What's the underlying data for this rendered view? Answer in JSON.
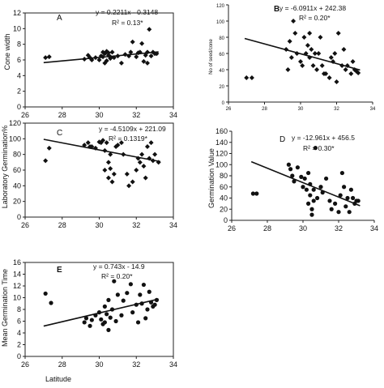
{
  "figure": {
    "x_label_bottom": "Latitude"
  },
  "chart_data": [
    {
      "id": "A",
      "type": "scatter",
      "letter": "A",
      "ylabel": "Cone width",
      "xlabel": "",
      "equation": "y = 0.2211x - 0.3148",
      "r2": "R² = 0.13*",
      "marker": "diamond",
      "xlim": [
        26,
        34
      ],
      "ylim": [
        0,
        12
      ],
      "x_ticks": [
        26,
        28,
        30,
        32,
        34
      ],
      "y_ticks": [
        0,
        2,
        4,
        6,
        8,
        10,
        12
      ],
      "trend": {
        "slope": 0.2211,
        "intercept": -0.3148
      },
      "x": [
        27.1,
        27.3,
        29.2,
        29.4,
        29.5,
        29.6,
        29.8,
        30.0,
        30.1,
        30.2,
        30.2,
        30.3,
        30.3,
        30.4,
        30.4,
        30.5,
        30.5,
        30.6,
        30.6,
        30.7,
        30.8,
        31.0,
        31.2,
        31.4,
        31.6,
        31.7,
        31.8,
        32.0,
        32.1,
        32.2,
        32.3,
        32.4,
        32.5,
        32.6,
        32.6,
        32.7,
        32.8,
        32.9,
        33.0,
        33.1
      ],
      "y": [
        6.3,
        6.4,
        6.1,
        6.6,
        6.3,
        6.0,
        6.3,
        6.0,
        6.5,
        7.0,
        6.4,
        6.8,
        5.6,
        7.1,
        5.9,
        6.6,
        6.9,
        6.4,
        6.2,
        7.0,
        6.3,
        6.5,
        5.6,
        6.7,
        6.5,
        7.0,
        8.3,
        6.4,
        6.9,
        7.0,
        8.1,
        5.8,
        6.6,
        7.0,
        5.6,
        9.9,
        6.5,
        7.0,
        6.8,
        6.8
      ]
    },
    {
      "id": "B",
      "type": "scatter",
      "letter": "B",
      "ylabel": "No of seed/cone",
      "xlabel": "",
      "equation": "y = -6.0911x + 242.38",
      "r2": "R² = 0.20*",
      "marker": "diamond",
      "xlim": [
        26,
        34
      ],
      "ylim": [
        0,
        120
      ],
      "x_ticks": [
        26,
        28,
        30,
        32,
        34
      ],
      "y_ticks": [
        0,
        20,
        40,
        60,
        80,
        100,
        120
      ],
      "trend": {
        "slope": -6.0911,
        "intercept": 242.38
      },
      "x": [
        27.0,
        27.3,
        29.2,
        29.3,
        29.4,
        29.5,
        29.6,
        29.7,
        29.8,
        30.0,
        30.1,
        30.2,
        30.3,
        30.4,
        30.5,
        30.5,
        30.6,
        30.7,
        30.8,
        30.9,
        31.0,
        31.1,
        31.2,
        31.3,
        31.4,
        31.6,
        31.7,
        31.8,
        31.9,
        32.0,
        32.1,
        32.3,
        32.4,
        32.5,
        32.6,
        32.8,
        32.9,
        33.0,
        33.1,
        33.2
      ],
      "y": [
        30,
        30,
        65,
        40,
        75,
        55,
        100,
        85,
        60,
        50,
        45,
        80,
        60,
        70,
        85,
        55,
        65,
        45,
        60,
        40,
        60,
        80,
        45,
        35,
        35,
        30,
        55,
        50,
        60,
        25,
        85,
        45,
        65,
        40,
        45,
        35,
        50,
        40,
        38,
        36
      ]
    },
    {
      "id": "C",
      "type": "scatter",
      "letter": "C",
      "ylabel": "Laboratory Germination%",
      "xlabel": "",
      "equation": "y = -4.5109x + 221.09",
      "r2": "R² = 0.1319*",
      "marker": "diamond",
      "xlim": [
        26,
        34
      ],
      "ylim": [
        0,
        120
      ],
      "x_ticks": [
        26,
        28,
        30,
        32,
        34
      ],
      "y_ticks": [
        0,
        20,
        40,
        60,
        80,
        100,
        120
      ],
      "trend": {
        "slope": -4.5109,
        "intercept": 221.09
      },
      "x": [
        27.1,
        27.3,
        29.2,
        29.4,
        29.5,
        29.6,
        29.8,
        30.0,
        30.1,
        30.2,
        30.3,
        30.3,
        30.4,
        30.5,
        30.5,
        30.6,
        30.6,
        30.7,
        30.8,
        30.9,
        31.0,
        31.2,
        31.3,
        31.5,
        31.6,
        31.8,
        32.0,
        32.1,
        32.2,
        32.3,
        32.4,
        32.5,
        32.6,
        32.7,
        32.8,
        32.9,
        33.0,
        33.2
      ],
      "y": [
        72,
        88,
        92,
        95,
        90,
        90,
        88,
        96,
        95,
        98,
        85,
        60,
        95,
        50,
        70,
        62,
        80,
        45,
        55,
        90,
        92,
        95,
        80,
        55,
        40,
        45,
        60,
        75,
        70,
        80,
        65,
        50,
        90,
        75,
        95,
        72,
        80,
        70
      ]
    },
    {
      "id": "D",
      "type": "scatter",
      "letter": "D",
      "ylabel": "Germination Value",
      "xlabel": "",
      "equation": "y = -12.961x + 456.5",
      "r2": "R² = 0.30*",
      "marker": "circle",
      "xlim": [
        26,
        34
      ],
      "ylim": [
        0,
        160
      ],
      "x_ticks": [
        26,
        28,
        30,
        32,
        34
      ],
      "y_ticks": [
        0,
        20,
        40,
        60,
        80,
        100,
        120,
        140,
        160
      ],
      "trend": {
        "slope": -12.961,
        "intercept": 456.5
      },
      "x": [
        27.2,
        27.4,
        29.2,
        29.3,
        29.4,
        29.5,
        29.7,
        29.9,
        30.0,
        30.1,
        30.2,
        30.3,
        30.3,
        30.4,
        30.4,
        30.5,
        30.5,
        30.6,
        30.6,
        30.7,
        30.8,
        31.0,
        31.1,
        31.3,
        31.5,
        31.6,
        31.8,
        32.0,
        32.1,
        32.2,
        32.3,
        32.4,
        32.5,
        32.6,
        32.7,
        32.8,
        32.9,
        33.0,
        33.1
      ],
      "y": [
        48,
        48,
        100,
        92,
        80,
        70,
        95,
        78,
        60,
        75,
        55,
        30,
        85,
        65,
        45,
        20,
        10,
        55,
        35,
        130,
        40,
        60,
        50,
        75,
        35,
        20,
        30,
        15,
        45,
        85,
        60,
        25,
        40,
        15,
        55,
        40,
        30,
        35,
        35
      ]
    },
    {
      "id": "E",
      "type": "scatter",
      "letter": "E",
      "ylabel": "Mean Germination Time",
      "xlabel": "Latitude",
      "equation": "y = 0.743x - 14.9",
      "r2": "R² = 0.20*",
      "marker": "circle",
      "xlim": [
        26,
        34
      ],
      "ylim": [
        0,
        16
      ],
      "x_ticks": [
        26,
        28,
        30,
        32,
        34
      ],
      "y_ticks": [
        0,
        2,
        4,
        6,
        8,
        10,
        12,
        14,
        16
      ],
      "trend": {
        "slope": 0.743,
        "intercept": -14.9
      },
      "x": [
        27.1,
        27.4,
        29.2,
        29.3,
        29.5,
        29.6,
        29.8,
        30.0,
        30.1,
        30.2,
        30.3,
        30.3,
        30.4,
        30.5,
        30.5,
        30.6,
        30.7,
        30.8,
        30.9,
        31.0,
        31.2,
        31.3,
        31.5,
        31.7,
        31.8,
        32.0,
        32.1,
        32.2,
        32.3,
        32.4,
        32.5,
        32.6,
        32.7,
        32.8,
        32.9,
        33.0,
        33.1
      ],
      "y": [
        10.7,
        9.1,
        5.8,
        6.5,
        5.2,
        6.2,
        7.0,
        7.5,
        6.3,
        5.5,
        8.5,
        5.8,
        7.2,
        9.6,
        4.5,
        6.6,
        8.0,
        12.8,
        6.0,
        10.5,
        7.0,
        9.5,
        10.8,
        12.3,
        7.5,
        8.8,
        5.8,
        10.5,
        9.0,
        12.2,
        6.5,
        8.0,
        11.0,
        9.2,
        8.5,
        8.8,
        9.6
      ]
    }
  ]
}
